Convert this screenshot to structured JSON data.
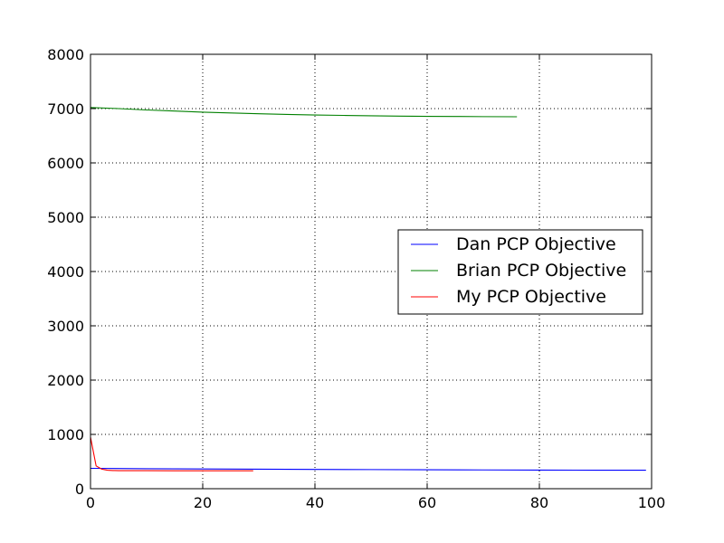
{
  "chart_data": {
    "type": "line",
    "title": "",
    "xlabel": "",
    "ylabel": "",
    "xlim": [
      0,
      100
    ],
    "ylim": [
      0,
      8000
    ],
    "xticks": [
      0,
      20,
      40,
      60,
      80,
      100
    ],
    "yticks": [
      0,
      1000,
      2000,
      3000,
      4000,
      5000,
      6000,
      7000,
      8000
    ],
    "grid": true,
    "legend_position": "center-right",
    "series": [
      {
        "name": "Dan PCP Objective",
        "color": "#0000ff",
        "x": [
          0,
          10,
          20,
          30,
          40,
          50,
          60,
          70,
          80,
          90,
          99
        ],
        "y": [
          375,
          368,
          364,
          360,
          356,
          352,
          349,
          346,
          343,
          341,
          340
        ]
      },
      {
        "name": "Brian PCP Objective",
        "color": "#008000",
        "x": [
          0,
          5,
          10,
          15,
          20,
          25,
          30,
          35,
          40,
          45,
          50,
          55,
          60,
          65,
          70,
          76
        ],
        "y": [
          7020,
          7000,
          6975,
          6955,
          6935,
          6920,
          6905,
          6893,
          6883,
          6875,
          6868,
          6862,
          6858,
          6855,
          6852,
          6850
        ]
      },
      {
        "name": "My PCP Objective",
        "color": "#ff0000",
        "x": [
          0,
          1,
          2,
          3,
          4,
          5,
          10,
          15,
          20,
          25,
          29
        ],
        "y": [
          950,
          420,
          360,
          340,
          335,
          333,
          332,
          331,
          331,
          331,
          330
        ]
      }
    ]
  }
}
